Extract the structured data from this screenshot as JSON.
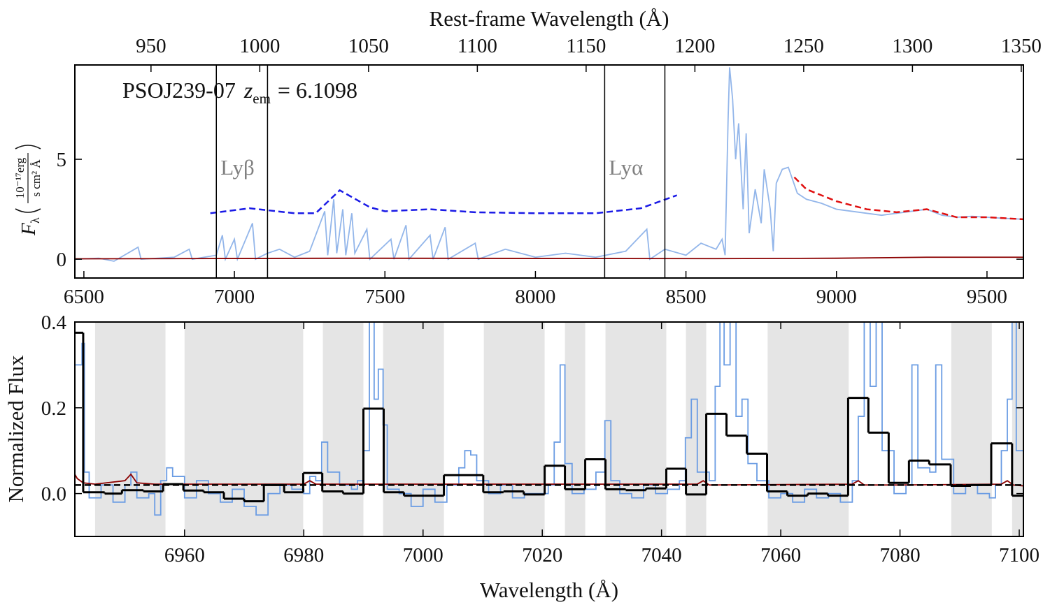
{
  "chart_data": [
    {
      "type": "line",
      "x2label": "Rest-frame Wavelength (Å)",
      "x2lim": [
        915,
        1351
      ],
      "x2ticks": [
        950,
        1000,
        1050,
        1100,
        1150,
        1200,
        1250,
        1300,
        1350
      ],
      "xlim": [
        6470,
        9621
      ],
      "xticks": [
        6500,
        7000,
        7500,
        8000,
        8500,
        9000,
        9500
      ],
      "ylim": [
        -0.94,
        9.72
      ],
      "yticks": [
        0,
        5
      ],
      "ylabel": {
        "symbol": "F",
        "sub": "λ",
        "unit_numerator": "10⁻¹⁷erg",
        "unit_denominator": "s cm² Å"
      },
      "annotation": {
        "quasar": "PSOJ239-07",
        "z": "z",
        "z_sub": "em",
        "z_value": "= 6.1098"
      },
      "lines": [
        {
          "label": "Lyβ",
          "bounds": [
            6940,
            7110
          ]
        },
        {
          "label": "Lyα",
          "bounds": [
            8230,
            8430
          ]
        }
      ],
      "series": [
        {
          "color": "#93b6ea",
          "style": "solid",
          "x": [
            6470,
            6550,
            6600,
            6680,
            6690,
            6800,
            6850,
            6860,
            6940,
            6960,
            6970,
            7000,
            7010,
            7060,
            7070,
            7110,
            7150,
            7200,
            7250,
            7300,
            7310,
            7330,
            7340,
            7360,
            7370,
            7390,
            7400,
            7440,
            7450,
            7520,
            7530,
            7570,
            7580,
            7650,
            7660,
            7700,
            7710,
            7800,
            7810,
            7900,
            8000,
            8100,
            8200,
            8300,
            8370,
            8380,
            8430,
            8500,
            8550,
            8600,
            8620,
            8630,
            8640,
            8645,
            8655,
            8665,
            8675,
            8690,
            8700,
            8710,
            8730,
            8750,
            8760,
            8780,
            8790,
            8800,
            8820,
            8840,
            8870,
            8900,
            8950,
            9000,
            9050,
            9100,
            9150,
            9200,
            9250,
            9300,
            9350,
            9400,
            9450,
            9500,
            9550,
            9621
          ],
          "values": [
            0,
            0.05,
            -0.1,
            0.6,
            0,
            0.1,
            0.5,
            0,
            0.2,
            1.2,
            0,
            1.0,
            0,
            1.8,
            0,
            0.3,
            0.5,
            0.1,
            0.4,
            2.4,
            0.2,
            3.0,
            0.3,
            2.5,
            0.2,
            2.3,
            0.3,
            1.5,
            0,
            1.0,
            0,
            1.7,
            0,
            1.2,
            0,
            1.6,
            0,
            0.8,
            0,
            0.5,
            0.1,
            0.3,
            0.1,
            0.4,
            1.5,
            0,
            0.5,
            0.2,
            0.8,
            0.5,
            1.0,
            0.2,
            7.0,
            9.6,
            8.0,
            5.0,
            6.8,
            2.5,
            6.3,
            1.3,
            3.5,
            1.8,
            4.5,
            2.5,
            0.4,
            3.8,
            4.5,
            4.6,
            3.3,
            3.0,
            2.8,
            2.5,
            2.4,
            2.3,
            2.2,
            2.3,
            2.4,
            2.5,
            2.2,
            2.1,
            2.15,
            2.1,
            2.05,
            2.0
          ]
        },
        {
          "color": "#8b0000",
          "style": "solid",
          "x": [
            6470,
            7400,
            8600,
            9000,
            9300,
            9621
          ],
          "values": [
            0.02,
            0.05,
            0.03,
            0.05,
            0.1,
            0.1
          ]
        },
        {
          "color": "#1a1ae6",
          "style": "dashed",
          "x": [
            6920,
            7050,
            7200,
            7270,
            7350,
            7450,
            7500,
            7650,
            7800,
            8000,
            8200,
            8350,
            8470
          ],
          "values": [
            2.3,
            2.55,
            2.3,
            2.3,
            3.45,
            2.6,
            2.4,
            2.5,
            2.35,
            2.3,
            2.3,
            2.55,
            3.2
          ]
        },
        {
          "color": "#e01010",
          "style": "dashed",
          "x": [
            8860,
            8900,
            9000,
            9100,
            9200,
            9300,
            9400,
            9500,
            9621
          ],
          "values": [
            4.1,
            3.5,
            2.9,
            2.5,
            2.35,
            2.5,
            2.1,
            2.1,
            2.0
          ]
        }
      ]
    },
    {
      "type": "line",
      "xlabel": "Wavelength (Å)",
      "ylabel": "Normalized Flux",
      "xlim": [
        6941.6,
        7100.7
      ],
      "xticks": [
        6960,
        6980,
        7000,
        7020,
        7040,
        7060,
        7080,
        7100
      ],
      "ylim": [
        -0.1,
        0.4
      ],
      "yticks": [
        {
          "value": 0,
          "label": "0.0"
        },
        {
          "value": 0.2,
          "label": "0.2"
        },
        {
          "value": 0.4,
          "label": "0.4"
        }
      ],
      "shaded": [
        [
          6945,
          6956.8
        ],
        [
          6960,
          6979.9
        ],
        [
          6983.2,
          6990
        ],
        [
          6993.3,
          7003.5
        ],
        [
          7010.2,
          7020.4
        ],
        [
          7023.8,
          7027.2
        ],
        [
          7030.6,
          7040.8
        ],
        [
          7044.1,
          7047.5
        ],
        [
          7057.8,
          7071.4
        ],
        [
          7088.6,
          7095.4
        ],
        [
          7098.8,
          7100.7
        ]
      ],
      "shade_color": "#e5e5e5",
      "series": [
        {
          "color": "#6a9ce3",
          "style": "step",
          "x": [
            6941.6,
            6942.3,
            6942.8,
            6943.2,
            6944,
            6946,
            6948,
            6950,
            6951,
            6952,
            6954,
            6955,
            6956,
            6957,
            6958,
            6960,
            6962,
            6964,
            6966,
            6968,
            6970,
            6972,
            6974,
            6976,
            6978,
            6980,
            6981,
            6982,
            6983,
            6984,
            6986,
            6988,
            6989,
            6990,
            6991,
            6991.8,
            6992.5,
            6993.3,
            6994,
            6996,
            6998,
            7000,
            7002,
            7004,
            7006,
            7007,
            7008,
            7009,
            7011,
            7013,
            7015,
            7017,
            7019,
            7021,
            7022,
            7023,
            7023.8,
            7025,
            7027,
            7029,
            7030.5,
            7031.5,
            7033,
            7035,
            7037,
            7039,
            7041,
            7043,
            7044,
            7045,
            7046,
            7048,
            7049,
            7049.8,
            7050.5,
            7051.5,
            7052.5,
            7053.5,
            7054.5,
            7056,
            7058,
            7060,
            7062,
            7064,
            7066,
            7068,
            7070,
            7072,
            7073,
            7074,
            7075,
            7076,
            7077,
            7079,
            7081,
            7082,
            7083,
            7085,
            7086,
            7087,
            7089,
            7091,
            7093,
            7095,
            7096,
            7097,
            7098,
            7098.8,
            7099.5,
            7100.7
          ],
          "values": [
            0.3,
            0.3,
            0.35,
            0.05,
            -0.01,
            0.02,
            -0.02,
            0.02,
            0.05,
            -0.01,
            0,
            -0.05,
            0.03,
            0.06,
            0.04,
            -0.01,
            0.03,
            0,
            -0.02,
            0.01,
            -0.03,
            -0.05,
            0,
            0.02,
            0.01,
            0,
            0.04,
            0.03,
            0.12,
            0.05,
            0.02,
            0.01,
            0.03,
            0.1,
            0.4,
            0.22,
            0.29,
            0.16,
            0.01,
            0,
            -0.03,
            0.01,
            -0.02,
            0.02,
            0.06,
            0.1,
            0.09,
            0.03,
            0,
            0.02,
            -0.01,
            0,
            0,
            0.02,
            0.12,
            0.3,
            0.07,
            0,
            0.01,
            0.05,
            0.17,
            0.03,
            0,
            -0.01,
            0.02,
            0,
            0.01,
            0.03,
            0.13,
            0.22,
            0.05,
            0.03,
            0.25,
            0.4,
            0.3,
            0.4,
            0.18,
            0.22,
            0.07,
            0.03,
            -0.01,
            0,
            -0.02,
            0.01,
            -0.01,
            0,
            -0.02,
            0.03,
            0.18,
            0.4,
            0.25,
            0.4,
            0.1,
            0,
            0.02,
            0.3,
            0.06,
            0.05,
            0.3,
            0.08,
            0,
            0.02,
            0,
            -0.01,
            0.02,
            0.1,
            0.22,
            0.4,
            0.1,
            -0.02
          ]
        },
        {
          "color": "#8b0000",
          "style": "solid",
          "x": [
            6941.6,
            6942,
            6943,
            6945,
            6950,
            6951,
            6952,
            6955,
            6980,
            6981,
            6982,
            7000,
            7040,
            7046,
            7047,
            7048,
            7072,
            7073,
            7074,
            7080,
            7097,
            7098,
            7099,
            7100.7
          ],
          "values": [
            0.045,
            0.035,
            0.025,
            0.022,
            0.03,
            0.045,
            0.025,
            0.022,
            0.022,
            0.03,
            0.022,
            0.022,
            0.022,
            0.022,
            0.03,
            0.02,
            0.022,
            0.03,
            0.02,
            0.02,
            0.022,
            0.03,
            0.02,
            0.018
          ]
        },
        {
          "color": "#000000",
          "style": "dashed",
          "x": [
            6941.6,
            7100.7
          ],
          "values": [
            0.02,
            0.02
          ]
        }
      ],
      "binned": {
        "color": "#000000",
        "bin_edges": [
          6941.6,
          6943.0,
          6946.6,
          6949.5,
          6953.1,
          6956.4,
          6959.8,
          6963.2,
          6966.6,
          6970.0,
          6973.3,
          6976.7,
          6979.9,
          6983.1,
          6986.6,
          6990.0,
          6993.4,
          6996.8,
          7000.2,
          7003.5,
          7010.1,
          7013.5,
          7016.9,
          7020.4,
          7023.8,
          7027.2,
          7030.6,
          7034.0,
          7037.4,
          7040.8,
          7044.1,
          7047.5,
          7050.9,
          7054.3,
          7057.7,
          7061.1,
          7064.5,
          7067.9,
          7071.3,
          7074.7,
          7078.1,
          7081.5,
          7084.9,
          7088.5,
          7091.9,
          7095.3,
          7098.8,
          7100.8
        ],
        "values": [
          0.375,
          0.003,
          0,
          0.008,
          0.005,
          0.022,
          0.007,
          0.003,
          -0.012,
          -0.018,
          0.02,
          0.003,
          0.048,
          0.005,
          0,
          0.198,
          0.003,
          -0.005,
          -0.005,
          0.043,
          0.003,
          0.005,
          -0.002,
          0.065,
          0.01,
          0.08,
          0.01,
          0.008,
          0.012,
          0.058,
          -0.002,
          0.186,
          0.135,
          0.093,
          0.005,
          -0.005,
          0,
          -0.005,
          0.223,
          0.142,
          0.025,
          0.077,
          0.068,
          0.018,
          0.02,
          0.117,
          -0.005
        ]
      }
    }
  ]
}
